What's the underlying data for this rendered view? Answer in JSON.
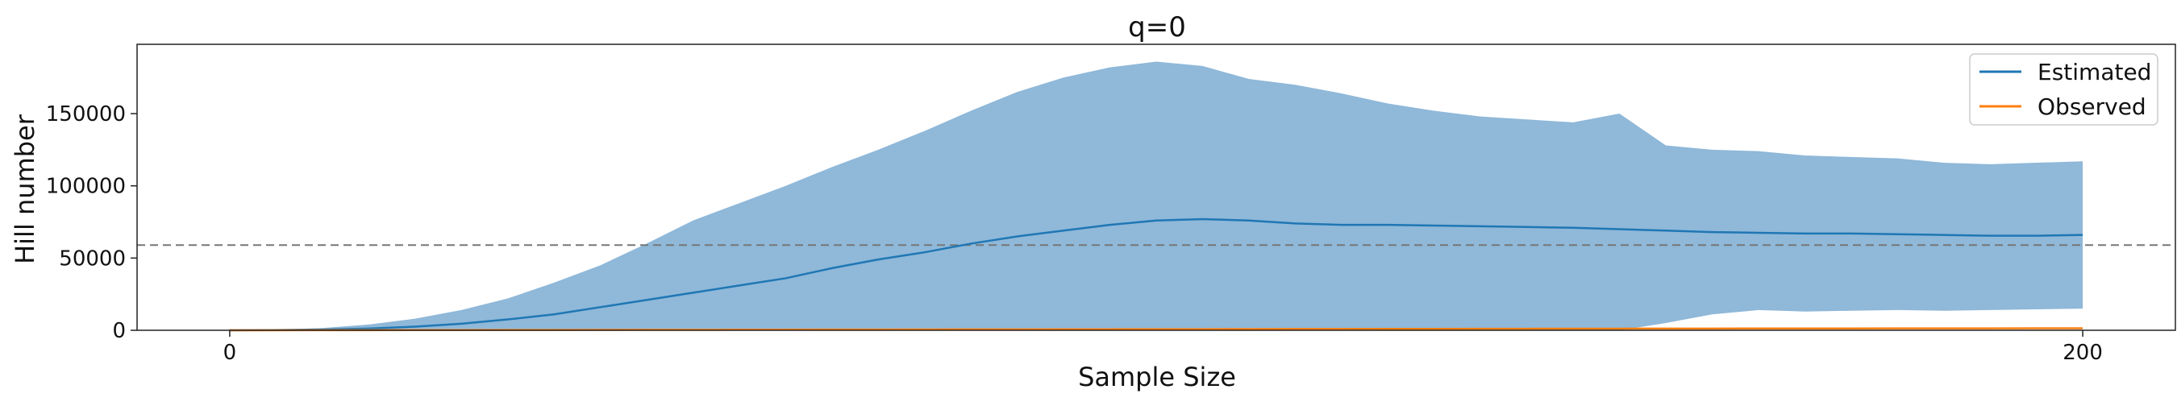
{
  "chart_data": {
    "type": "line",
    "title": "q=0",
    "xlabel": "Sample Size",
    "ylabel": "Hill number",
    "xlim": [
      -10,
      210
    ],
    "ylim": [
      0,
      198000
    ],
    "x_ticks": [
      0,
      200
    ],
    "x_tick_labels": [
      "0",
      "200"
    ],
    "y_ticks": [
      0,
      50000,
      100000,
      150000
    ],
    "y_tick_labels": [
      "0",
      "50000",
      "100000",
      "150000"
    ],
    "grid": false,
    "legend_position": "top-right",
    "reference_line": {
      "y": 59000,
      "style": "dashed",
      "color": "#777777"
    },
    "colors": {
      "estimated": "#1f77b4",
      "observed": "#ff7f0e",
      "band": "#8fb8d9"
    },
    "x": [
      0,
      5,
      10,
      15,
      20,
      25,
      30,
      35,
      40,
      45,
      50,
      55,
      60,
      65,
      70,
      75,
      80,
      85,
      90,
      95,
      100,
      105,
      110,
      115,
      120,
      125,
      130,
      135,
      140,
      145,
      150,
      155,
      160,
      165,
      170,
      175,
      180,
      185,
      190,
      195,
      200
    ],
    "series": [
      {
        "name": "Estimated",
        "values": [
          0,
          150,
          500,
          1200,
          2500,
          4500,
          7500,
          11000,
          16000,
          21000,
          26000,
          31000,
          36000,
          43000,
          49000,
          54000,
          60000,
          65000,
          69000,
          73000,
          76000,
          77000,
          76000,
          74000,
          73000,
          73000,
          72500,
          72000,
          71500,
          71000,
          70000,
          69000,
          68000,
          67500,
          67000,
          67000,
          66500,
          66000,
          65500,
          65500,
          66000
        ]
      },
      {
        "name": "Observed",
        "values": [
          0,
          30,
          60,
          90,
          120,
          160,
          200,
          240,
          280,
          320,
          360,
          400,
          440,
          480,
          520,
          560,
          600,
          640,
          680,
          720,
          760,
          800,
          840,
          880,
          920,
          960,
          1000,
          1040,
          1080,
          1120,
          1150,
          1180,
          1210,
          1240,
          1260,
          1280,
          1300,
          1320,
          1340,
          1360,
          1380
        ]
      }
    ],
    "band": {
      "upper": [
        0,
        500,
        1500,
        4000,
        8000,
        14000,
        22000,
        33000,
        45000,
        60000,
        76000,
        88000,
        100000,
        113000,
        125000,
        138000,
        152000,
        165000,
        175000,
        182000,
        186000,
        183000,
        174000,
        170000,
        164000,
        157000,
        152000,
        148000,
        146000,
        144000,
        150000,
        128000,
        125000,
        124000,
        121000,
        120000,
        119000,
        116000,
        115000,
        116000,
        117000
      ],
      "lower": [
        0,
        0,
        0,
        0,
        0,
        0,
        0,
        0,
        0,
        0,
        0,
        0,
        0,
        0,
        0,
        0,
        0,
        0,
        0,
        0,
        0,
        0,
        0,
        0,
        0,
        0,
        0,
        0,
        0,
        0,
        0,
        5000,
        11000,
        14000,
        13000,
        13500,
        14000,
        13500,
        14000,
        14500,
        15000
      ]
    }
  }
}
